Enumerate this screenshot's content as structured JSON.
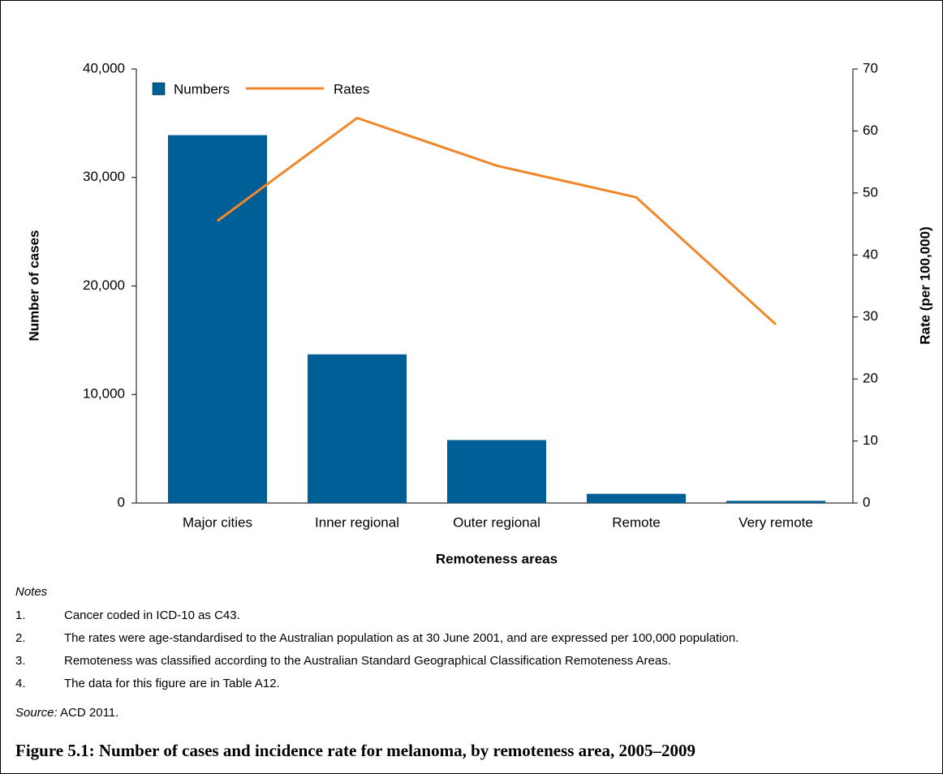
{
  "chart_data": {
    "type": "bar_line",
    "x_label": "Remoteness areas",
    "y_label": "Number of cases",
    "y2_label": "Rate (per 100,000)",
    "categories": [
      "Major cities",
      "Inner regional",
      "Outer regional",
      "Remote",
      "Very remote"
    ],
    "series": [
      {
        "name": "Numbers",
        "type": "bar",
        "color": "#005f96",
        "values": [
          33900,
          13700,
          5800,
          850,
          200
        ]
      },
      {
        "name": "Rates",
        "type": "line",
        "axis": "y2",
        "color": "#f0882a",
        "values": [
          45.5,
          62.1,
          54.4,
          49.3,
          28.8
        ]
      }
    ],
    "ylim": [
      0,
      40000
    ],
    "yticks": [
      0,
      {
        "value": 10000,
        "label": "10,000"
      },
      {
        "value": 20000,
        "label": "20,000"
      },
      {
        "value": 30000,
        "label": "30,000"
      },
      {
        "value": 40000,
        "label": "40,000"
      }
    ],
    "y2lim": [
      0,
      70
    ],
    "y2ticks": [
      0,
      10,
      20,
      30,
      40,
      50,
      60,
      70
    ],
    "legend": "upper left",
    "grid": false
  },
  "notes": {
    "title": "Notes",
    "items": [
      {
        "number": "1.",
        "text": "Cancer coded in ICD-10 as C43."
      },
      {
        "number": "2.",
        "text": "The rates were age-standardised to the Australian population as at 30 June 2001, and are expressed per 100,000 population."
      },
      {
        "number": "3.",
        "text": "Remoteness was classified according to the Australian Standard Geographical Classification Remoteness Areas."
      },
      {
        "number": "4.",
        "text": "The data for this figure are in Table A12."
      }
    ]
  },
  "source": {
    "label": "Source:",
    "text": " ACD 2011."
  },
  "caption": "Figure 5.1: Number of cases and incidence rate for melanoma, by remoteness area, 2005–2009"
}
